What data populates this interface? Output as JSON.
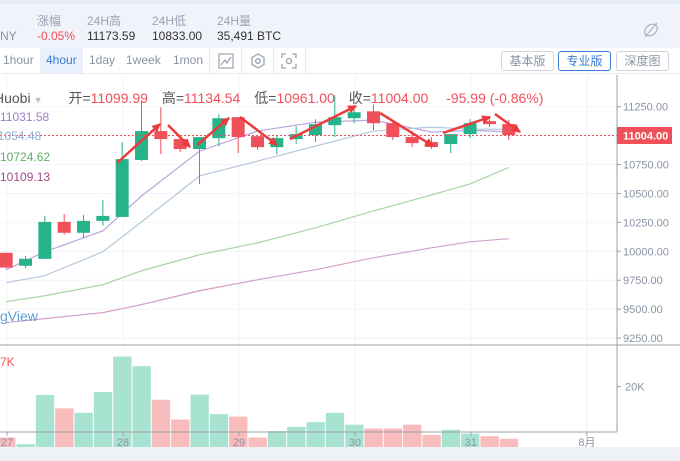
{
  "stats": {
    "pair_tail": "NY",
    "items": [
      {
        "label": "涨幅",
        "value": "-0.05%",
        "negative": true
      },
      {
        "label": "24H高",
        "value": "11173.59"
      },
      {
        "label": "24H低",
        "value": "10833.00"
      },
      {
        "label": "24H量",
        "value": "35,491 BTC"
      }
    ],
    "hide_icon": "eye-off-icon"
  },
  "toolbar": {
    "timeframes": [
      "1hour",
      "4hour",
      "1day",
      "1week",
      "1mon"
    ],
    "active_timeframe": "4hour",
    "icons": [
      "indicator-icon",
      "settings-hexagon-icon",
      "screenshot-icon"
    ],
    "views": [
      "基本版",
      "专业版",
      "深度图"
    ],
    "active_view": "专业版"
  },
  "legend": {
    "exchange": "Huobi",
    "open_label": "开=",
    "open": "11099.99",
    "high_label": "高=",
    "high": "11134.54",
    "low_label": "低=",
    "low": "10961.00",
    "close_label": "收=",
    "close": "11004.00",
    "change": "-95.99 (-0.86%)"
  },
  "ma_values": [
    {
      "value": "11031.58",
      "color": "#9b7fc4"
    },
    {
      "value": "11054.48",
      "color": "#8fb0cf"
    },
    {
      "value": "10724.62",
      "color": "#5fae63"
    },
    {
      "value": "10109.13",
      "color": "#a64a86"
    }
  ],
  "watermark": "gView",
  "volume_label": "7K",
  "colors": {
    "up": "#26b38a",
    "down": "#f0505a",
    "vol_up": "#a8e3d2",
    "vol_down": "#f8bcbd",
    "accent": "#3a7bd5"
  },
  "chart_data": {
    "type": "candlestick",
    "interval": "4hour",
    "price_ticks": [
      "11250.00",
      "10750.00",
      "10500.00",
      "10250.00",
      "10000.00",
      "9750.00",
      "9500.00",
      "9250.00"
    ],
    "price_tick_values": [
      11250,
      10750,
      10500,
      10250,
      10000,
      9750,
      9500,
      9250
    ],
    "current_price": "11004.00",
    "current_price_value": 11004,
    "volume_ticks": [
      "20K",
      "0"
    ],
    "volume_tick_values": [
      20000,
      0
    ],
    "x_labels": [
      "27",
      "28",
      "29",
      "30",
      "31",
      "8月"
    ],
    "x_label_candle_index": [
      0,
      6,
      12,
      18,
      24,
      30
    ],
    "candles": [
      [
        9987,
        9990,
        9850,
        9860
      ],
      [
        9875,
        9960,
        9855,
        9935
      ],
      [
        9935,
        10306,
        9935,
        10254
      ],
      [
        10254,
        10323,
        10142,
        10160
      ],
      [
        10160,
        10315,
        10116,
        10263
      ],
      [
        10263,
        10444,
        10220,
        10306
      ],
      [
        10297,
        10943,
        10297,
        10797
      ],
      [
        10789,
        11306,
        10780,
        11039
      ],
      [
        11039,
        11245,
        10840,
        10970
      ],
      [
        10970,
        10995,
        10858,
        10884
      ],
      [
        10884,
        10987,
        10582,
        10987
      ],
      [
        10978,
        11185,
        10909,
        11150
      ],
      [
        11159,
        11159,
        10849,
        10987
      ],
      [
        10995,
        10995,
        10875,
        10900
      ],
      [
        10900,
        11004,
        10840,
        10978
      ],
      [
        10970,
        11082,
        10927,
        11013
      ],
      [
        11004,
        11142,
        10944,
        11099
      ],
      [
        11090,
        11349,
        10987,
        11159
      ],
      [
        11150,
        11254,
        11107,
        11202
      ],
      [
        11210,
        11270,
        11047,
        11107
      ],
      [
        11107,
        11120,
        10961,
        10987
      ],
      [
        10987,
        11039,
        10901,
        10935
      ],
      [
        10944,
        10987,
        10884,
        10901
      ],
      [
        10927,
        11013,
        10849,
        11013
      ],
      [
        11013,
        11142,
        10978,
        11107
      ],
      [
        11125,
        11168,
        11073,
        11099
      ],
      [
        11099.99,
        11134.54,
        10961,
        11004
      ]
    ],
    "volumes": [
      4100,
      2000,
      17400,
      13200,
      11800,
      18300,
      29400,
      26400,
      15900,
      9700,
      17500,
      11400,
      10600,
      4100,
      6100,
      7400,
      8900,
      11800,
      8100,
      6900,
      6900,
      8100,
      4900,
      6500,
      5300,
      4500,
      3700
    ],
    "ma_lines": [
      {
        "color": "#b9a6dc",
        "idx": [
          0,
          2,
          5,
          7,
          10,
          13,
          16,
          19,
          22,
          24,
          26
        ],
        "values": [
          9841,
          9996,
          10177,
          10478,
          10866,
          11039,
          11116,
          11134,
          11030,
          11045,
          11032
        ]
      },
      {
        "color": "#b4c8de",
        "idx": [
          0,
          2,
          5,
          7,
          10,
          13,
          16,
          19,
          22,
          24,
          26
        ],
        "values": [
          9729,
          9789,
          9996,
          10254,
          10651,
          10780,
          10909,
          11039,
          11073,
          11056,
          11054
        ]
      },
      {
        "color": "#a9d6a6",
        "idx": [
          0,
          2,
          5,
          7,
          10,
          13,
          16,
          19,
          22,
          24,
          26
        ],
        "values": [
          9565,
          9616,
          9711,
          9832,
          9970,
          10073,
          10203,
          10349,
          10487,
          10582,
          10725
        ]
      },
      {
        "color": "#d6a0c8",
        "idx": [
          0,
          2,
          5,
          7,
          10,
          13,
          16,
          19,
          22,
          24,
          26
        ],
        "values": [
          9384,
          9418,
          9470,
          9539,
          9659,
          9754,
          9841,
          9944,
          10030,
          10082,
          10109
        ]
      }
    ]
  }
}
